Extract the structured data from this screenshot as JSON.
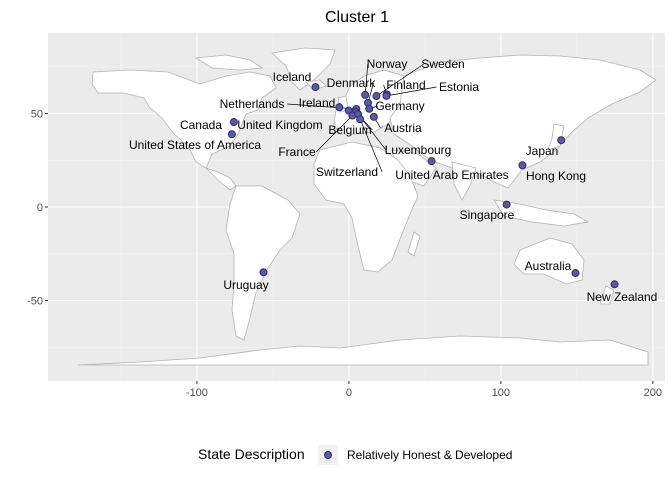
{
  "chart_data": {
    "type": "scatter",
    "title": "Cluster 1",
    "xlabel": "",
    "ylabel": "",
    "xlim": [
      -198,
      208
    ],
    "ylim": [
      -93,
      93
    ],
    "x_ticks": [
      -100,
      0,
      100,
      200
    ],
    "y_ticks": [
      -50,
      0,
      50
    ],
    "grid": true,
    "legend": {
      "position": "bottom",
      "title": "State Description",
      "entries": [
        "Relatively Honest & Developed"
      ]
    },
    "series": [
      {
        "name": "Relatively Honest & Developed",
        "color": "#5a5aa6",
        "points": [
          {
            "label": "Iceland",
            "lon": -22,
            "lat": 64.1
          },
          {
            "label": "Norway",
            "lon": 10.7,
            "lat": 59.9
          },
          {
            "label": "Sweden",
            "lon": 18.1,
            "lat": 59.3
          },
          {
            "label": "Finland",
            "lon": 24.9,
            "lat": 60.2
          },
          {
            "label": "Estonia",
            "lon": 24.7,
            "lat": 59.4
          },
          {
            "label": "Denmark",
            "lon": 12.6,
            "lat": 55.7
          },
          {
            "label": "Netherlands",
            "lon": 4.9,
            "lat": 52.4
          },
          {
            "label": "Ireland",
            "lon": -6.3,
            "lat": 53.3
          },
          {
            "label": "Germany",
            "lon": 13.4,
            "lat": 52.5
          },
          {
            "label": "United Kingdom",
            "lon": -0.1,
            "lat": 51.5
          },
          {
            "label": "Belgium",
            "lon": 4.4,
            "lat": 50.8
          },
          {
            "label": "Austria",
            "lon": 16.4,
            "lat": 48.2
          },
          {
            "label": "France",
            "lon": 2.3,
            "lat": 48.9
          },
          {
            "label": "Luxembourg",
            "lon": 6.1,
            "lat": 49.6
          },
          {
            "label": "Switzerland",
            "lon": 7.4,
            "lat": 46.9
          },
          {
            "label": "Canada",
            "lon": -75.7,
            "lat": 45.4
          },
          {
            "label": "United States of America",
            "lon": -77,
            "lat": 38.9
          },
          {
            "label": "United Arab Emirates",
            "lon": 54.4,
            "lat": 24.5
          },
          {
            "label": "Japan",
            "lon": 139.7,
            "lat": 35.7
          },
          {
            "label": "Hong Kong",
            "lon": 114.2,
            "lat": 22.3
          },
          {
            "label": "Singapore",
            "lon": 103.8,
            "lat": 1.3
          },
          {
            "label": "Australia",
            "lon": 149.1,
            "lat": -35.3
          },
          {
            "label": "New Zealand",
            "lon": 174.8,
            "lat": -41.3
          },
          {
            "label": "Uruguay",
            "lon": -56.2,
            "lat": -34.9
          }
        ]
      }
    ]
  }
}
